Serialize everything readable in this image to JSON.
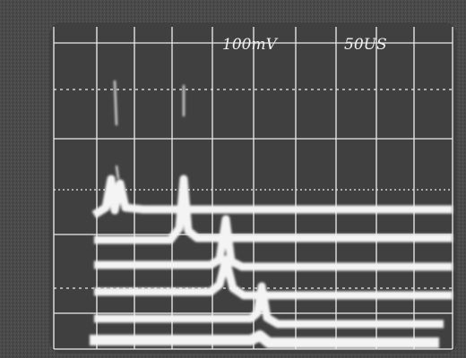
{
  "screen": {
    "volts_per_div": "100mV",
    "time_per_div": "50US"
  }
}
